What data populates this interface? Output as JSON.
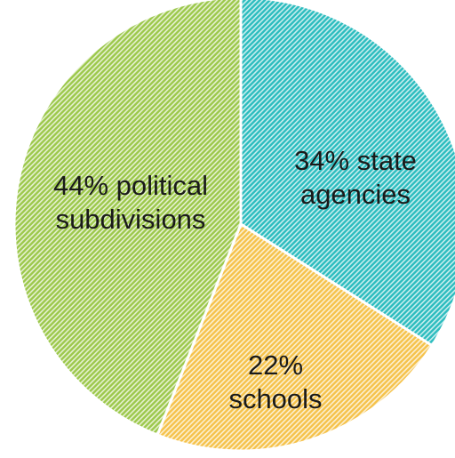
{
  "chart_data": {
    "type": "pie",
    "legend": "none",
    "slices": [
      {
        "label_lines": [
          "34% state",
          "agencies"
        ],
        "value": 34,
        "color": "#2bbcbe"
      },
      {
        "label_lines": [
          "22%",
          "schools"
        ],
        "value": 22,
        "color": "#f5c24a"
      },
      {
        "label_lines": [
          "44% political",
          "subdivisions"
        ],
        "value": 44,
        "color": "#9cc84b"
      }
    ]
  }
}
